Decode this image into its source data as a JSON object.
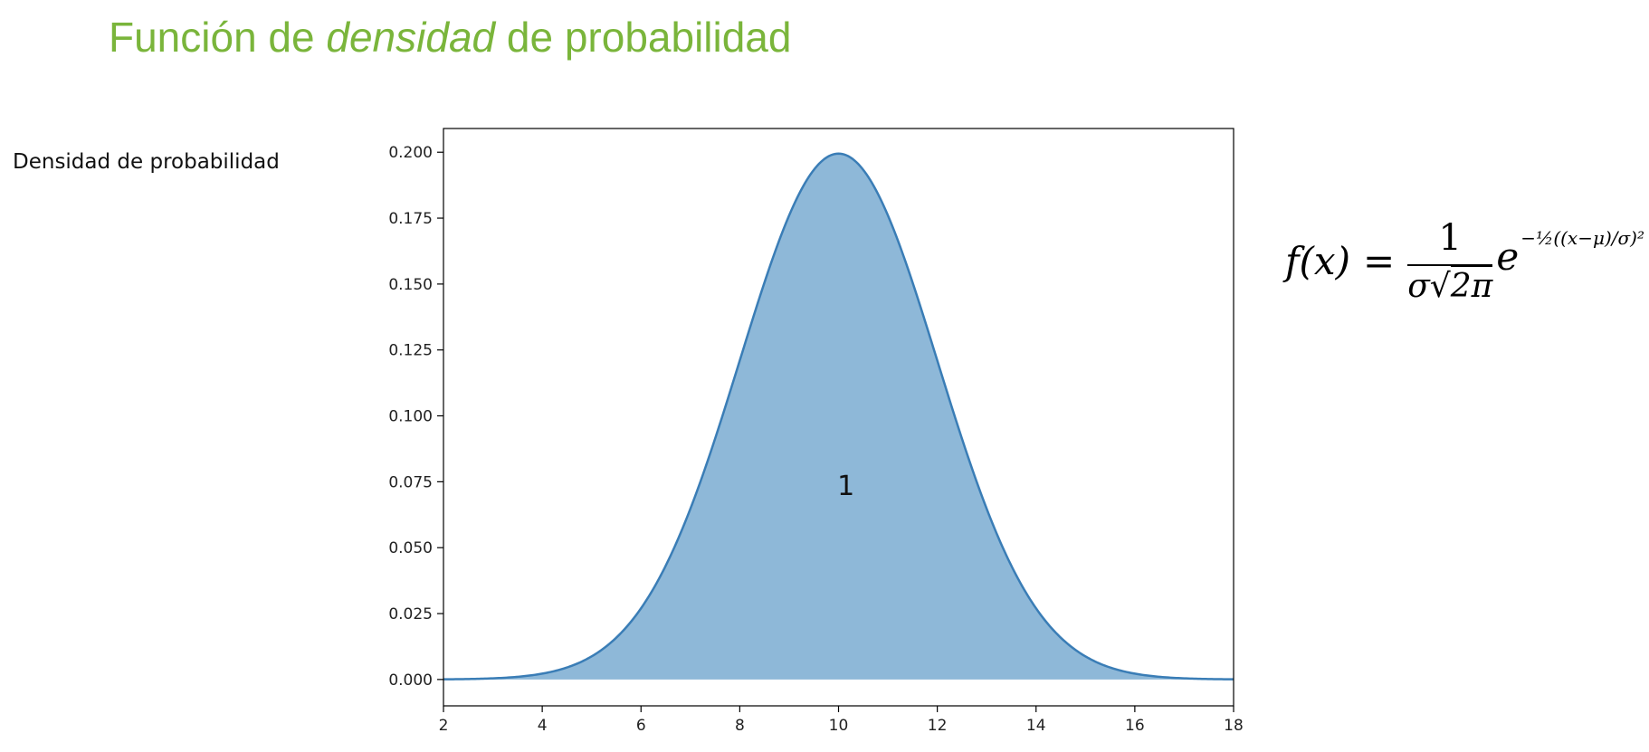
{
  "header": {
    "title_pre": "Función de ",
    "title_em": "densidad",
    "title_post": " de probabilidad"
  },
  "side_label": "Densidad de probabilidad",
  "formula": {
    "lhs": "f(x)",
    "equals": "=",
    "numerator": "1",
    "denominator_sigma": "σ",
    "denominator_sqrt": "√",
    "denominator_root": "2π",
    "base": "e",
    "exponent": "−½((x−μ)/σ)²"
  },
  "chart_data": {
    "type": "area",
    "distribution": "normal",
    "mean": 10,
    "std": 2,
    "x": [
      2,
      3,
      4,
      5,
      6,
      7,
      8,
      9,
      10,
      11,
      12,
      13,
      14,
      15,
      16,
      17,
      18
    ],
    "y": [
      0.0001,
      0.0009,
      0.0022,
      0.0088,
      0.027,
      0.0648,
      0.121,
      0.176,
      0.1995,
      0.176,
      0.121,
      0.0648,
      0.027,
      0.0088,
      0.0022,
      0.0009,
      0.0001
    ],
    "xlim": [
      2,
      18
    ],
    "ylim": [
      -0.01,
      0.209
    ],
    "xticks": [
      2,
      4,
      6,
      8,
      10,
      12,
      14,
      16,
      18
    ],
    "yticks": [
      "0.000",
      "0.025",
      "0.050",
      "0.075",
      "0.100",
      "0.125",
      "0.150",
      "0.175",
      "0.200"
    ],
    "annotation": "1",
    "annotation_x": 10.15,
    "annotation_y": 0.07,
    "fill_color": "#8eb8d8",
    "line_color": "#3a7db6",
    "grid": false
  }
}
